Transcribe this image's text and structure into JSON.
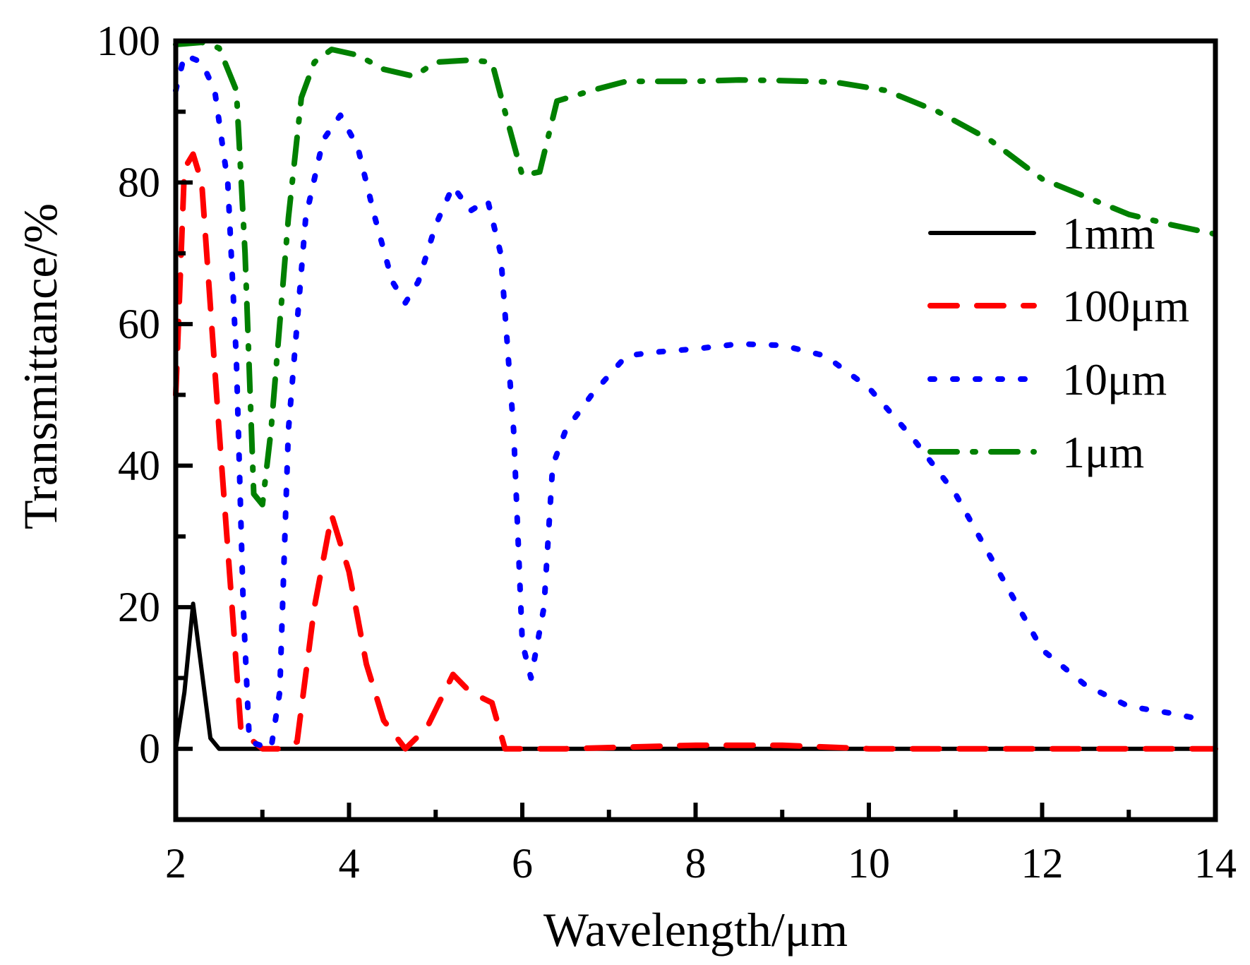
{
  "chart_data": {
    "type": "line",
    "title": "",
    "xlabel": "Wavelength/μm",
    "ylabel": "Transmittance/%",
    "xlim": [
      2,
      14
    ],
    "ylim": [
      -10,
      100
    ],
    "x_ticks": [
      2,
      4,
      6,
      8,
      10,
      12,
      14
    ],
    "x_tick_labels": [
      "2",
      "4",
      "6",
      "8",
      "10",
      "12",
      "14"
    ],
    "x_minor_ticks": [
      3,
      5,
      7,
      9,
      11,
      13
    ],
    "y_ticks": [
      0,
      20,
      40,
      60,
      80,
      100
    ],
    "y_tick_labels": [
      "0",
      "20",
      "40",
      "60",
      "80",
      "100"
    ],
    "y_minor_ticks": [
      10,
      30,
      50,
      70,
      90
    ],
    "grid": false,
    "legend_position": "right",
    "series": [
      {
        "name": "1mm",
        "color": "#000000",
        "style": "solid",
        "points": [
          [
            2.0,
            0
          ],
          [
            2.1,
            8
          ],
          [
            2.2,
            20.5
          ],
          [
            2.4,
            1.5
          ],
          [
            2.5,
            0
          ],
          [
            3,
            0
          ],
          [
            4,
            0
          ],
          [
            6,
            0
          ],
          [
            8,
            0
          ],
          [
            10,
            0
          ],
          [
            12,
            0
          ],
          [
            14,
            0
          ]
        ]
      },
      {
        "name": "100μm",
        "color": "#ff0000",
        "style": "dash",
        "points": [
          [
            2.0,
            50
          ],
          [
            2.1,
            82
          ],
          [
            2.2,
            84
          ],
          [
            2.3,
            80
          ],
          [
            2.5,
            45
          ],
          [
            2.65,
            20
          ],
          [
            2.75,
            3
          ],
          [
            2.85,
            1.5
          ],
          [
            3.0,
            0
          ],
          [
            3.2,
            0
          ],
          [
            3.4,
            1
          ],
          [
            3.6,
            20
          ],
          [
            3.8,
            33
          ],
          [
            4.0,
            25
          ],
          [
            4.2,
            12
          ],
          [
            4.4,
            4
          ],
          [
            4.65,
            0
          ],
          [
            4.9,
            3
          ],
          [
            5.2,
            10.5
          ],
          [
            5.4,
            8
          ],
          [
            5.65,
            6.5
          ],
          [
            5.8,
            0
          ],
          [
            6.5,
            0
          ],
          [
            8.0,
            0.5
          ],
          [
            9.0,
            0.5
          ],
          [
            10.0,
            0
          ],
          [
            12.0,
            0
          ],
          [
            14.0,
            0
          ]
        ]
      },
      {
        "name": "10μm",
        "color": "#0000ff",
        "style": "dot",
        "points": [
          [
            2.0,
            93
          ],
          [
            2.1,
            98
          ],
          [
            2.3,
            97
          ],
          [
            2.45,
            93
          ],
          [
            2.6,
            80
          ],
          [
            2.7,
            55
          ],
          [
            2.78,
            20
          ],
          [
            2.85,
            1
          ],
          [
            3.1,
            0
          ],
          [
            3.2,
            8
          ],
          [
            3.3,
            45
          ],
          [
            3.5,
            75
          ],
          [
            3.7,
            86
          ],
          [
            3.9,
            89.5
          ],
          [
            4.1,
            85
          ],
          [
            4.3,
            75
          ],
          [
            4.5,
            66
          ],
          [
            4.65,
            63
          ],
          [
            4.8,
            66
          ],
          [
            5.0,
            74
          ],
          [
            5.2,
            79.5
          ],
          [
            5.4,
            76
          ],
          [
            5.6,
            77.5
          ],
          [
            5.75,
            70
          ],
          [
            5.9,
            45
          ],
          [
            6.0,
            15
          ],
          [
            6.1,
            10
          ],
          [
            6.25,
            20
          ],
          [
            6.35,
            40
          ],
          [
            6.5,
            45
          ],
          [
            6.8,
            50
          ],
          [
            7.2,
            55.5
          ],
          [
            7.5,
            56
          ],
          [
            8.0,
            56.5
          ],
          [
            8.5,
            57.2
          ],
          [
            9.0,
            57
          ],
          [
            9.5,
            55.5
          ],
          [
            10.0,
            51
          ],
          [
            10.5,
            44
          ],
          [
            11.0,
            36
          ],
          [
            11.5,
            25
          ],
          [
            12.0,
            14
          ],
          [
            12.5,
            9
          ],
          [
            13.0,
            6
          ],
          [
            13.5,
            5
          ],
          [
            13.9,
            4
          ]
        ]
      },
      {
        "name": "1μm",
        "color": "#008000",
        "style": "dashdot",
        "points": [
          [
            2.0,
            99.5
          ],
          [
            2.3,
            99.8
          ],
          [
            2.5,
            99
          ],
          [
            2.7,
            93
          ],
          [
            2.8,
            70
          ],
          [
            2.9,
            36
          ],
          [
            3.0,
            34.5
          ],
          [
            3.1,
            45
          ],
          [
            3.3,
            75
          ],
          [
            3.45,
            92
          ],
          [
            3.6,
            97
          ],
          [
            3.8,
            98.8
          ],
          [
            4.1,
            98
          ],
          [
            4.4,
            96
          ],
          [
            4.75,
            95
          ],
          [
            5.0,
            97
          ],
          [
            5.4,
            97.3
          ],
          [
            5.65,
            97
          ],
          [
            5.8,
            90
          ],
          [
            6.0,
            81
          ],
          [
            6.2,
            81.5
          ],
          [
            6.4,
            91.5
          ],
          [
            6.8,
            93
          ],
          [
            7.2,
            94.3
          ],
          [
            8.0,
            94.3
          ],
          [
            8.5,
            94.5
          ],
          [
            9.0,
            94.4
          ],
          [
            9.6,
            94.2
          ],
          [
            10.2,
            93
          ],
          [
            10.8,
            90
          ],
          [
            11.4,
            86
          ],
          [
            12.0,
            80.5
          ],
          [
            12.5,
            78
          ],
          [
            13.0,
            75.5
          ],
          [
            13.5,
            74
          ],
          [
            14.0,
            72.7
          ]
        ]
      }
    ]
  }
}
